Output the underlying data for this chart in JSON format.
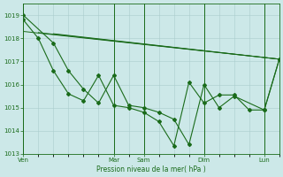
{
  "background_color": "#cce8e8",
  "grid_color": "#aacccc",
  "line_color": "#1a6b1a",
  "ylim": [
    1013,
    1019.5
  ],
  "yticks": [
    1013,
    1014,
    1015,
    1016,
    1017,
    1018,
    1019
  ],
  "xlabel": "Pression niveau de la mer( hPa )",
  "xtick_labels": [
    "Ven",
    "Mar",
    "Sam",
    "Dim",
    "Lun"
  ],
  "xtick_positions": [
    0,
    6,
    8,
    12,
    16
  ],
  "xlim": [
    0,
    17
  ],
  "grid_xticks": [
    0,
    1,
    2,
    3,
    4,
    5,
    6,
    7,
    8,
    9,
    10,
    11,
    12,
    13,
    14,
    15,
    16,
    17
  ],
  "line_detailed1": {
    "x": [
      0,
      2,
      3,
      4,
      5,
      6,
      7,
      8,
      9,
      10,
      11,
      12,
      13,
      14,
      16,
      17
    ],
    "y": [
      1019.0,
      1017.8,
      1016.6,
      1015.8,
      1015.2,
      1016.4,
      1015.1,
      1015.0,
      1014.8,
      1014.5,
      1013.4,
      1016.0,
      1015.0,
      1015.5,
      1014.9,
      1017.1
    ]
  },
  "line_detailed2": {
    "x": [
      0,
      1,
      2,
      3,
      4,
      5,
      6,
      7,
      8,
      9,
      10,
      11,
      12,
      13,
      14,
      15,
      16,
      17
    ],
    "y": [
      1018.8,
      1018.0,
      1016.6,
      1015.6,
      1015.3,
      1016.4,
      1015.1,
      1015.0,
      1014.8,
      1014.4,
      1013.35,
      1016.1,
      1015.2,
      1015.55,
      1015.55,
      1014.9,
      1014.9,
      1017.1
    ]
  },
  "line_smooth1": {
    "x": [
      0,
      17
    ],
    "y": [
      1018.3,
      1017.1
    ]
  },
  "line_smooth2": {
    "x": [
      1,
      17
    ],
    "y": [
      1018.25,
      1017.1
    ]
  },
  "line_smooth3": {
    "x": [
      2,
      17
    ],
    "y": [
      1018.2,
      1017.1
    ]
  },
  "vlines": [
    0,
    6,
    8,
    12,
    16
  ]
}
